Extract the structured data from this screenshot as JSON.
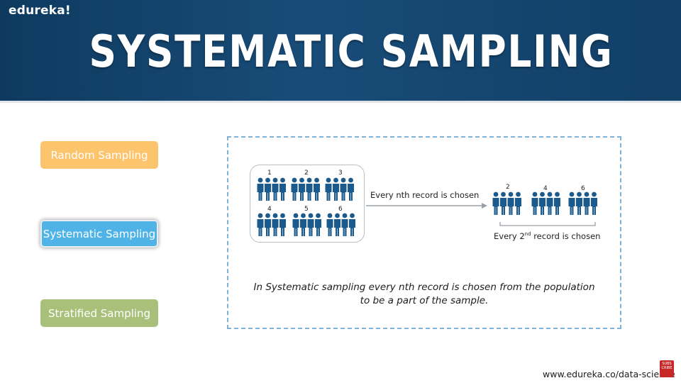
{
  "header": {
    "brand": "edureka!",
    "title": "SYSTEMATIC SAMPLING"
  },
  "sidebar": {
    "items": [
      {
        "label": "Random Sampling",
        "color": "#fcc46c"
      },
      {
        "label": "Systematic Sampling",
        "color": "#4fb3e8",
        "selected": true
      },
      {
        "label": "Stratified Sampling",
        "color": "#a8c07a"
      }
    ]
  },
  "diagram": {
    "population_groups": [
      "1",
      "2",
      "3",
      "4",
      "5",
      "6"
    ],
    "arrow_label": "Every nth record is chosen",
    "sample_groups": [
      "2",
      "4",
      "6"
    ],
    "sample_label_pre": "Every 2",
    "sample_label_sup": "nd",
    "sample_label_post": " record is chosen",
    "people_icon": "person-group-icon",
    "people_color": "#1a5a8c"
  },
  "description": {
    "line1": "In Systematic sampling every nth record is chosen from the population",
    "line2": "to be a part of the sample."
  },
  "footer": {
    "url": "www.edureka.co/data-science",
    "subscribe_icon": "subscribe-icon"
  }
}
